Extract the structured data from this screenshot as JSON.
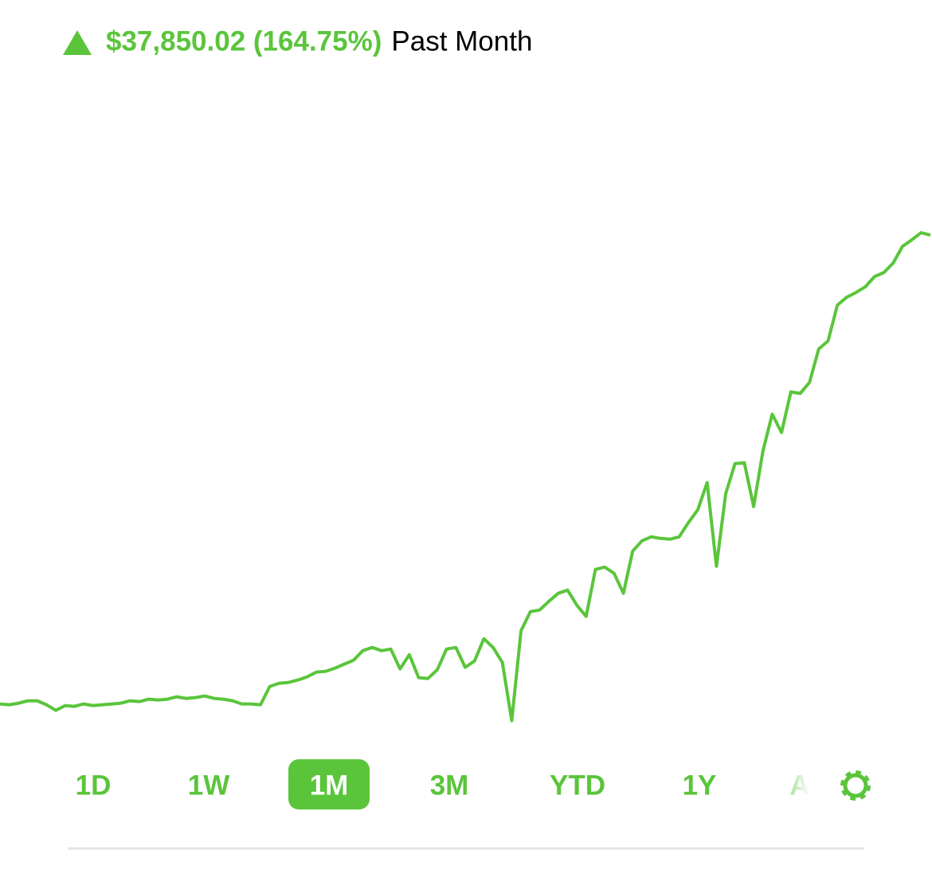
{
  "header": {
    "gain": "$37,850.02 (164.75%)",
    "period": "Past Month"
  },
  "chart_data": {
    "type": "line",
    "color": "#5ac53b",
    "ylim": [
      20000,
      73200
    ],
    "values": [
      22974,
      22910,
      23038,
      23230,
      23230,
      22910,
      22462,
      22846,
      22782,
      22974,
      22846,
      22910,
      22974,
      23038,
      23230,
      23166,
      23358,
      23294,
      23358,
      23550,
      23422,
      23486,
      23614,
      23422,
      23358,
      23230,
      22974,
      22974,
      22910,
      24383,
      24639,
      24703,
      24895,
      25151,
      25536,
      25600,
      25856,
      26176,
      26496,
      27265,
      27521,
      27265,
      27393,
      25792,
      26944,
      25087,
      25023,
      25728,
      27393,
      27521,
      25920,
      26432,
      28225,
      27521,
      26304,
      21629,
      28866,
      30403,
      30531,
      31235,
      31876,
      32132,
      30915,
      30018,
      33797,
      33989,
      33477,
      31876,
      35270,
      36102,
      36422,
      36294,
      36230,
      36422,
      37575,
      38600,
      40777,
      34053,
      39881,
      42314,
      42378,
      38856,
      43339,
      46285,
      44812,
      48078,
      47950,
      48846,
      51536,
      52176,
      55058,
      55698,
      56083,
      56531,
      57363,
      57684,
      58452,
      59797,
      60309,
      60886,
      60694
    ]
  },
  "ranges": {
    "items": [
      "1D",
      "1W",
      "1M",
      "3M",
      "YTD",
      "1Y",
      "A"
    ],
    "selected": 2
  }
}
